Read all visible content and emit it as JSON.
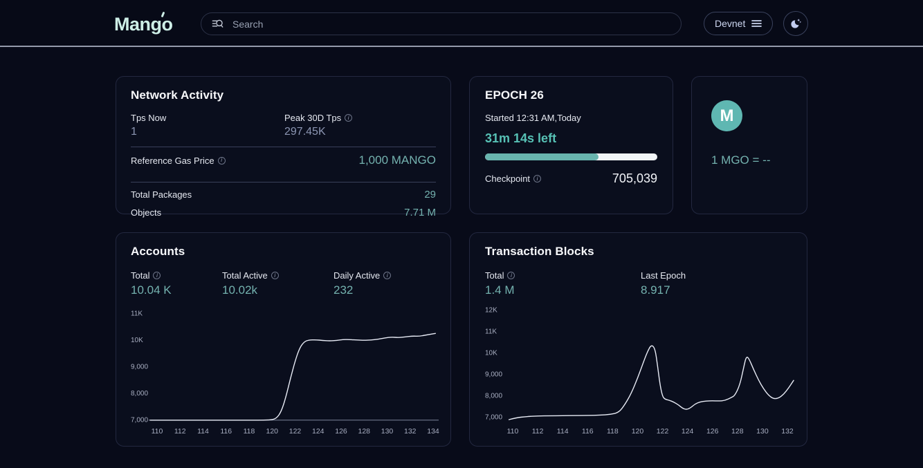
{
  "header": {
    "logo_text": "Mango",
    "search_placeholder": "Search",
    "network_label": "Devnet"
  },
  "network_activity": {
    "title": "Network Activity",
    "tps_now_label": "Tps Now",
    "tps_now_value": "1",
    "peak_label": "Peak 30D Tps",
    "peak_value": "297.45K",
    "gas_label": "Reference Gas Price",
    "gas_value": "1,000 MANGO",
    "packages_label": "Total Packages",
    "packages_value": "29",
    "objects_label": "Objects",
    "objects_value": "7.71 M"
  },
  "epoch": {
    "title": "EPOCH 26",
    "started": "Started 12:31 AM,Today",
    "time_left": "31m 14s left",
    "progress_percent": 66,
    "checkpoint_label": "Checkpoint",
    "checkpoint_value": "705,039"
  },
  "price": {
    "logo_letter": "M",
    "text": "1 MGO = --"
  },
  "accounts": {
    "title": "Accounts",
    "stats": [
      {
        "label": "Total",
        "value": "10.04 K"
      },
      {
        "label": "Total Active",
        "value": "10.02k"
      },
      {
        "label": "Daily Active",
        "value": "232"
      }
    ]
  },
  "transactions": {
    "title": "Transaction Blocks",
    "stats": [
      {
        "label": "Total",
        "value": "1.4 M"
      },
      {
        "label": "Last Epoch",
        "value": "8.917"
      }
    ]
  },
  "icons": {
    "search": "search-icon",
    "network_menu": "hamburger-icon",
    "theme": "moon-icon",
    "info": "info-icon",
    "coin": "mgo-coin-icon"
  },
  "colors": {
    "teal_value": "#74b2af",
    "teal_bright": "#57c1b5",
    "progress_fill": "#68b4ae",
    "progress_track": "#f2f5f8",
    "chart_line": "#e8ebf5",
    "logo_mint": "#cdeee6",
    "coin_bg": "#5fb7b2",
    "page_bg": "#080b19",
    "card_bg": "#0a0e1d"
  },
  "chart_data": [
    {
      "id": "accounts-chart",
      "type": "line",
      "title": "Accounts",
      "xlabel": "",
      "ylabel": "",
      "grid": false,
      "legend": false,
      "ylim": [
        7000,
        11000
      ],
      "yticks": [
        {
          "label": "7,000",
          "value": 7000
        },
        {
          "label": "8,000",
          "value": 8000
        },
        {
          "label": "9,000",
          "value": 9000
        },
        {
          "label": "10K",
          "value": 10000
        },
        {
          "label": "11K",
          "value": 11000
        }
      ],
      "xticks": [
        110,
        112,
        114,
        116,
        118,
        120,
        122,
        124,
        126,
        128,
        130,
        132,
        134
      ],
      "baseline": true,
      "points": [
        [
          109.4,
          6980
        ],
        [
          111,
          6980
        ],
        [
          113,
          6980
        ],
        [
          115,
          6980
        ],
        [
          117,
          6980
        ],
        [
          119,
          6980
        ],
        [
          120,
          6990
        ],
        [
          120.4,
          7060
        ],
        [
          120.8,
          7300
        ],
        [
          121.2,
          7850
        ],
        [
          121.6,
          8550
        ],
        [
          122,
          9200
        ],
        [
          122.4,
          9700
        ],
        [
          122.8,
          9930
        ],
        [
          123.2,
          9990
        ],
        [
          123.8,
          10000
        ],
        [
          124.4,
          9975
        ],
        [
          125,
          9955
        ],
        [
          125.6,
          9975
        ],
        [
          126.2,
          10010
        ],
        [
          126.8,
          10005
        ],
        [
          127.4,
          9990
        ],
        [
          128,
          9980
        ],
        [
          128.6,
          9990
        ],
        [
          129.2,
          10020
        ],
        [
          129.8,
          10070
        ],
        [
          130.4,
          10100
        ],
        [
          131,
          10080
        ],
        [
          131.6,
          10110
        ],
        [
          132.2,
          10140
        ],
        [
          132.8,
          10130
        ],
        [
          133.4,
          10180
        ],
        [
          134.2,
          10240
        ]
      ]
    },
    {
      "id": "tx-chart",
      "type": "line",
      "title": "Transaction Blocks",
      "xlabel": "",
      "ylabel": "",
      "grid": false,
      "legend": false,
      "ylim": [
        7000,
        12000
      ],
      "yticks": [
        {
          "label": "7,000",
          "value": 7000
        },
        {
          "label": "8,000",
          "value": 8000
        },
        {
          "label": "9,000",
          "value": 9000
        },
        {
          "label": "10K",
          "value": 10000
        },
        {
          "label": "11K",
          "value": 11000
        },
        {
          "label": "12K",
          "value": 12000
        }
      ],
      "xticks": [
        110,
        112,
        114,
        116,
        118,
        120,
        122,
        124,
        126,
        128,
        130,
        132
      ],
      "baseline": false,
      "points": [
        [
          109.7,
          6870
        ],
        [
          110.3,
          6960
        ],
        [
          111,
          7010
        ],
        [
          112,
          7040
        ],
        [
          113,
          7050
        ],
        [
          114,
          7055
        ],
        [
          115,
          7060
        ],
        [
          116,
          7065
        ],
        [
          117,
          7080
        ],
        [
          117.8,
          7110
        ],
        [
          118.5,
          7200
        ],
        [
          119,
          7585
        ],
        [
          119.5,
          8100
        ],
        [
          120,
          8800
        ],
        [
          120.5,
          9600
        ],
        [
          120.8,
          10050
        ],
        [
          121.1,
          10370
        ],
        [
          121.4,
          10200
        ],
        [
          121.6,
          9400
        ],
        [
          121.8,
          8500
        ],
        [
          122,
          7950
        ],
        [
          122.2,
          7820
        ],
        [
          122.5,
          7780
        ],
        [
          122.9,
          7690
        ],
        [
          123.3,
          7550
        ],
        [
          123.6,
          7400
        ],
        [
          123.9,
          7340
        ],
        [
          124.2,
          7400
        ],
        [
          124.6,
          7600
        ],
        [
          125,
          7700
        ],
        [
          125.5,
          7740
        ],
        [
          126,
          7750
        ],
        [
          126.5,
          7740
        ],
        [
          127,
          7760
        ],
        [
          127.5,
          7900
        ],
        [
          127.8,
          8000
        ],
        [
          128.2,
          8500
        ],
        [
          128.5,
          9300
        ],
        [
          128.7,
          9810
        ],
        [
          128.9,
          9750
        ],
        [
          129.3,
          9200
        ],
        [
          129.7,
          8700
        ],
        [
          130.1,
          8300
        ],
        [
          130.5,
          8000
        ],
        [
          130.9,
          7840
        ],
        [
          131.3,
          7870
        ],
        [
          131.7,
          8050
        ],
        [
          132.1,
          8350
        ],
        [
          132.5,
          8700
        ]
      ]
    }
  ]
}
